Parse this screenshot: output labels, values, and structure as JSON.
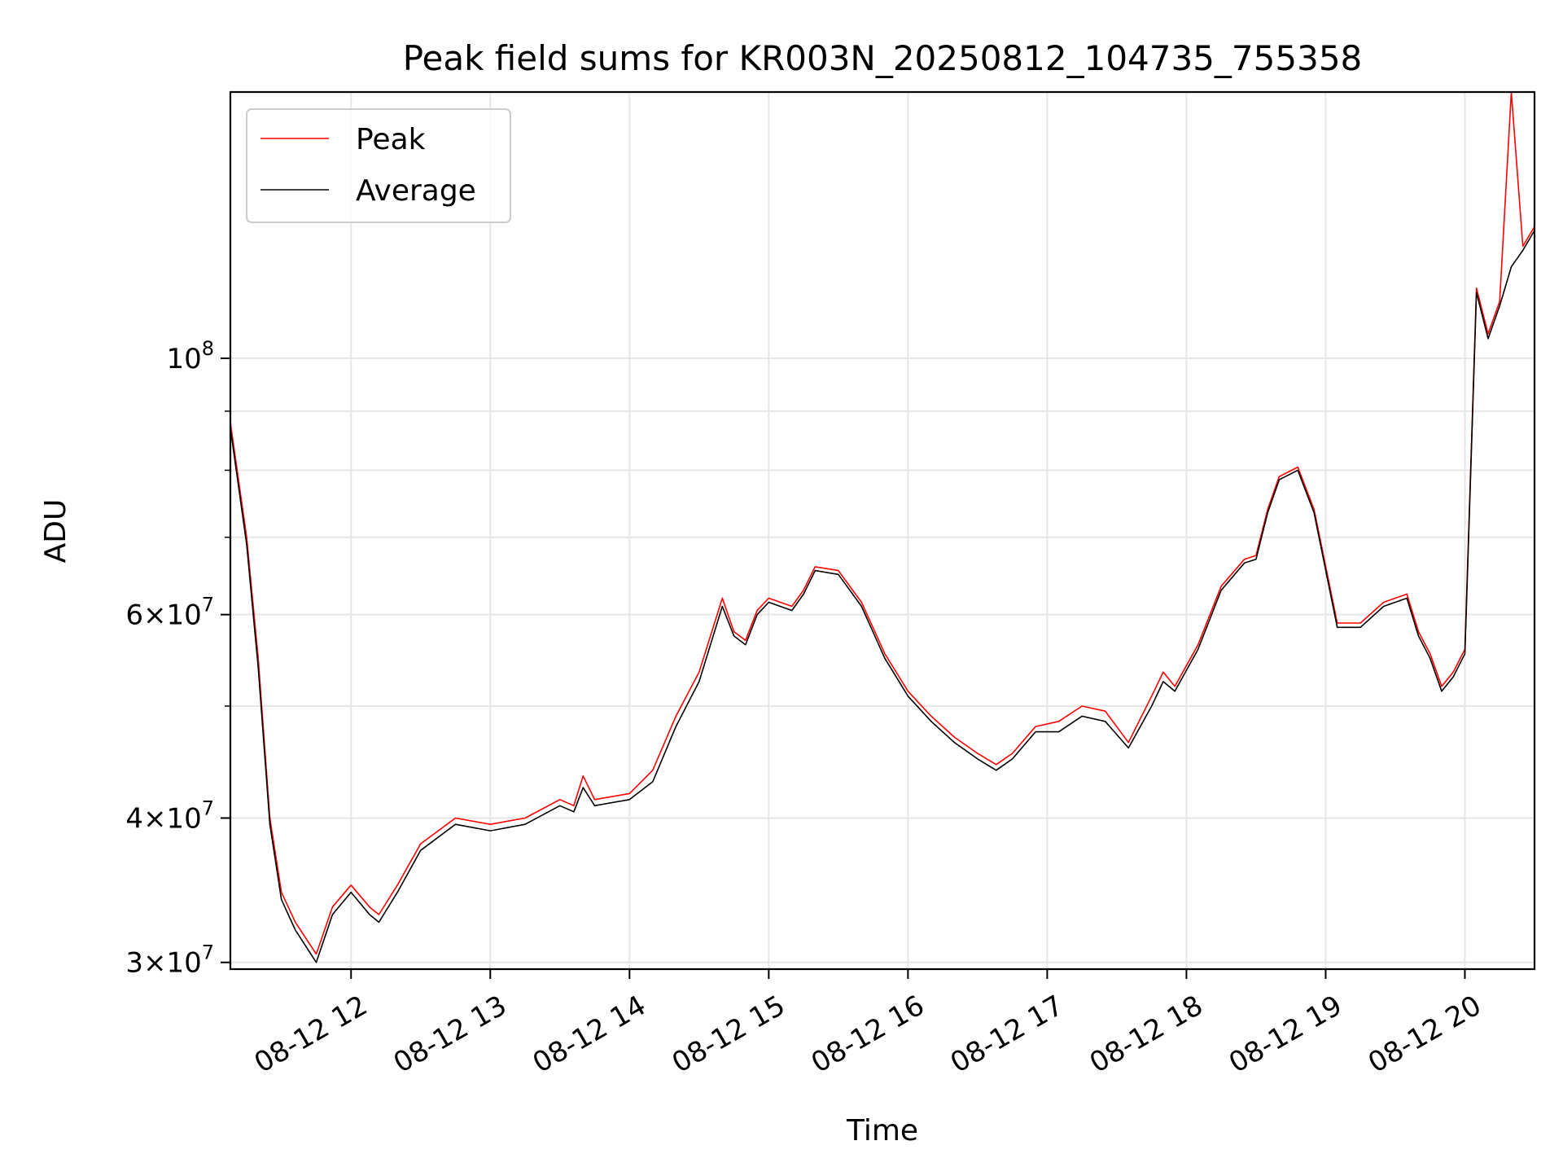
{
  "chart_data": {
    "type": "line",
    "title": "Peak field sums for KR003N_20250812_104735_755358",
    "xlabel": "Time",
    "ylabel": "ADU",
    "yscale": "log",
    "xlim": [
      "2025-08-12 11:08",
      "2025-08-12 20:30"
    ],
    "ylim": [
      29600000,
      170000000
    ],
    "grid": true,
    "legend_position": "upper left",
    "x_ticks": [
      "08-12 12",
      "08-12 13",
      "08-12 14",
      "08-12 15",
      "08-12 16",
      "08-12 17",
      "08-12 18",
      "08-12 19",
      "08-12 20"
    ],
    "y_ticks": [
      {
        "value": 30000000,
        "label": "3 × 10^7"
      },
      {
        "value": 40000000,
        "label": "4 × 10^7"
      },
      {
        "value": 60000000,
        "label": "6 × 10^7"
      },
      {
        "value": 100000000,
        "label": "10^8"
      }
    ],
    "y_minor_ticks": [
      50000000,
      70000000,
      80000000,
      90000000
    ],
    "x": [
      "2025-08-12 11:08",
      "2025-08-12 11:15",
      "2025-08-12 11:20",
      "2025-08-12 11:25",
      "2025-08-12 11:30",
      "2025-08-12 11:36",
      "2025-08-12 11:45",
      "2025-08-12 11:52",
      "2025-08-12 12:00",
      "2025-08-12 12:08",
      "2025-08-12 12:12",
      "2025-08-12 12:20",
      "2025-08-12 12:30",
      "2025-08-12 12:45",
      "2025-08-12 13:00",
      "2025-08-12 13:15",
      "2025-08-12 13:30",
      "2025-08-12 13:36",
      "2025-08-12 13:40",
      "2025-08-12 13:45",
      "2025-08-12 14:00",
      "2025-08-12 14:10",
      "2025-08-12 14:20",
      "2025-08-12 14:30",
      "2025-08-12 14:40",
      "2025-08-12 14:45",
      "2025-08-12 14:50",
      "2025-08-12 14:55",
      "2025-08-12 15:00",
      "2025-08-12 15:10",
      "2025-08-12 15:15",
      "2025-08-12 15:20",
      "2025-08-12 15:30",
      "2025-08-12 15:40",
      "2025-08-12 15:50",
      "2025-08-12 16:00",
      "2025-08-12 16:10",
      "2025-08-12 16:20",
      "2025-08-12 16:30",
      "2025-08-12 16:38",
      "2025-08-12 16:45",
      "2025-08-12 16:55",
      "2025-08-12 17:05",
      "2025-08-12 17:15",
      "2025-08-12 17:25",
      "2025-08-12 17:35",
      "2025-08-12 17:45",
      "2025-08-12 17:50",
      "2025-08-12 17:55",
      "2025-08-12 18:05",
      "2025-08-12 18:15",
      "2025-08-12 18:25",
      "2025-08-12 18:30",
      "2025-08-12 18:35",
      "2025-08-12 18:40",
      "2025-08-12 18:48",
      "2025-08-12 18:55",
      "2025-08-12 19:05",
      "2025-08-12 19:15",
      "2025-08-12 19:25",
      "2025-08-12 19:35",
      "2025-08-12 19:40",
      "2025-08-12 19:45",
      "2025-08-12 19:50",
      "2025-08-12 19:55",
      "2025-08-12 20:00",
      "2025-08-12 20:05",
      "2025-08-12 20:10",
      "2025-08-12 20:15",
      "2025-08-12 20:20",
      "2025-08-12 20:25",
      "2025-08-12 20:30"
    ],
    "series": [
      {
        "name": "Peak",
        "color": "#ff0000",
        "values": [
          88000000,
          70000000,
          55000000,
          40000000,
          34500000,
          32500000,
          30500000,
          33500000,
          35000000,
          33500000,
          33000000,
          35000000,
          38000000,
          40000000,
          39500000,
          40000000,
          41500000,
          41000000,
          43500000,
          41500000,
          42000000,
          44000000,
          49000000,
          53500000,
          62000000,
          58000000,
          57000000,
          60500000,
          62000000,
          61000000,
          63000000,
          66000000,
          65500000,
          61500000,
          55500000,
          51500000,
          49000000,
          47000000,
          45500000,
          44500000,
          45500000,
          48000000,
          48500000,
          50000000,
          49500000,
          46500000,
          51000000,
          53500000,
          52000000,
          56500000,
          63500000,
          67000000,
          67500000,
          74000000,
          79000000,
          80500000,
          74000000,
          59000000,
          59000000,
          61500000,
          62500000,
          58000000,
          55500000,
          52000000,
          53500000,
          56000000,
          115000000,
          105000000,
          112000000,
          170000000,
          125000000,
          130000000
        ]
      },
      {
        "name": "Average",
        "color": "#000000",
        "values": [
          87000000,
          69000000,
          54000000,
          39500000,
          34000000,
          32000000,
          30000000,
          33000000,
          34500000,
          33000000,
          32500000,
          34500000,
          37500000,
          39500000,
          39000000,
          39500000,
          41000000,
          40500000,
          42500000,
          41000000,
          41500000,
          43000000,
          48000000,
          52500000,
          61000000,
          57500000,
          56500000,
          60000000,
          61500000,
          60500000,
          62500000,
          65500000,
          65000000,
          61000000,
          55000000,
          51000000,
          48500000,
          46500000,
          45000000,
          44000000,
          45000000,
          47500000,
          47500000,
          49000000,
          48500000,
          46000000,
          50000000,
          52500000,
          51500000,
          56000000,
          63000000,
          66500000,
          67000000,
          73500000,
          78500000,
          80000000,
          73500000,
          58500000,
          58500000,
          61000000,
          62000000,
          57500000,
          55000000,
          51500000,
          53000000,
          55500000,
          114000000,
          104000000,
          111000000,
          120000000,
          124000000,
          129000000
        ]
      }
    ]
  }
}
